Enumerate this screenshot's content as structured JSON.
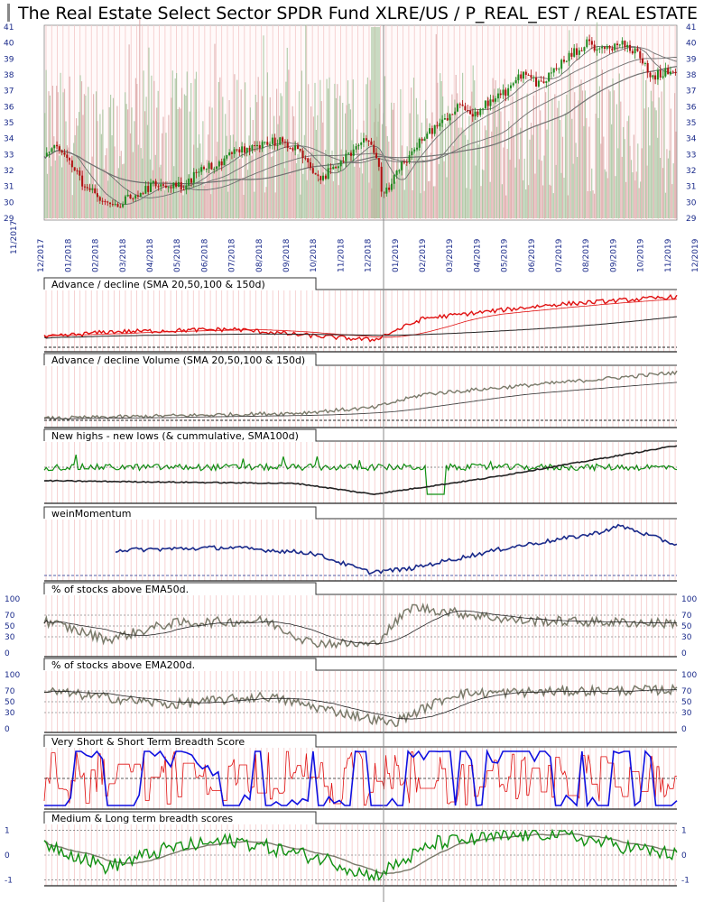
{
  "header": {
    "title": "The Real Estate Select Sector SPDR Fund XLRE/US / P_REAL_EST / REAL ESTATE"
  },
  "colors": {
    "up_candle": "#1f8a1f",
    "down_candle": "#b01010",
    "volume_up": "#9cbf94",
    "volume_down": "#d8a0a0",
    "ad_line": "#e01010",
    "gray_line": "#7a7a6a",
    "highs_lows": "#119011",
    "wein": "#1a2a8a",
    "breadth_red": "#e01010",
    "breadth_blue": "#1010e0",
    "axis_text": "#1a2a8a"
  },
  "chart_data": {
    "type": "multi-panel technical chart",
    "date_labels": [
      "11/2017",
      "12/2017",
      "01/2018",
      "02/2018",
      "03/2018",
      "04/2018",
      "05/2018",
      "06/2018",
      "07/2018",
      "08/2018",
      "09/2018",
      "10/2018",
      "11/2018",
      "12/2018",
      "01/2019",
      "02/2019",
      "03/2019",
      "04/2019",
      "05/2019",
      "06/2019",
      "07/2019",
      "08/2019",
      "09/2019",
      "10/2019",
      "11/2019",
      "12/2019"
    ],
    "price_panel": {
      "y_ticks": [
        29,
        30,
        31,
        32,
        33,
        34,
        35,
        36,
        37,
        38,
        39,
        40,
        41
      ],
      "ylim": [
        29,
        41
      ],
      "close_anchors": [
        [
          0,
          32.9
        ],
        [
          0.02,
          33.4
        ],
        [
          0.04,
          32.6
        ],
        [
          0.06,
          31.3
        ],
        [
          0.08,
          30.6
        ],
        [
          0.1,
          29.7
        ],
        [
          0.12,
          29.9
        ],
        [
          0.14,
          30.4
        ],
        [
          0.16,
          30.8
        ],
        [
          0.18,
          31.2
        ],
        [
          0.22,
          31.0
        ],
        [
          0.24,
          31.8
        ],
        [
          0.26,
          32.2
        ],
        [
          0.28,
          32.5
        ],
        [
          0.3,
          33.2
        ],
        [
          0.33,
          33.4
        ],
        [
          0.36,
          33.8
        ],
        [
          0.38,
          33.8
        ],
        [
          0.4,
          33.3
        ],
        [
          0.42,
          32.2
        ],
        [
          0.44,
          31.5
        ],
        [
          0.46,
          32.4
        ],
        [
          0.48,
          33.0
        ],
        [
          0.5,
          33.4
        ],
        [
          0.51,
          34.1
        ],
        [
          0.52,
          33.4
        ],
        [
          0.53,
          31.8
        ],
        [
          0.535,
          30.3
        ],
        [
          0.545,
          30.9
        ],
        [
          0.56,
          32.2
        ],
        [
          0.58,
          33.0
        ],
        [
          0.6,
          34.1
        ],
        [
          0.62,
          34.8
        ],
        [
          0.64,
          35.5
        ],
        [
          0.66,
          36.2
        ],
        [
          0.68,
          35.6
        ],
        [
          0.7,
          36.2
        ],
        [
          0.72,
          36.6
        ],
        [
          0.74,
          37.4
        ],
        [
          0.76,
          38.2
        ],
        [
          0.78,
          37.4
        ],
        [
          0.8,
          38.0
        ],
        [
          0.82,
          38.8
        ],
        [
          0.84,
          39.5
        ],
        [
          0.86,
          40.0
        ],
        [
          0.88,
          39.6
        ],
        [
          0.9,
          39.8
        ],
        [
          0.92,
          40.0
        ],
        [
          0.94,
          39.1
        ],
        [
          0.96,
          37.9
        ],
        [
          0.98,
          38.2
        ],
        [
          1.0,
          38.4
        ]
      ]
    },
    "panels": [
      {
        "name": "Advance / decline (SMA 20,50,100 & 150d)"
      },
      {
        "name": "Advance / decline Volume (SMA 20,50,100 & 150d)"
      },
      {
        "name": "New highs - new lows (& cummulative, SMA100d)"
      },
      {
        "name": "weinMomentum"
      },
      {
        "name": "% of stocks above EMA50d.",
        "y_ticks": [
          0,
          30,
          50,
          70,
          100
        ]
      },
      {
        "name": "% of stocks above EMA200d.",
        "y_ticks": [
          0,
          30,
          50,
          70,
          100
        ]
      },
      {
        "name": "Very Short & Short Term Breadth Score"
      },
      {
        "name": "Medium & Long term breadth scores",
        "y_ticks": [
          -1,
          0,
          1
        ]
      }
    ]
  }
}
